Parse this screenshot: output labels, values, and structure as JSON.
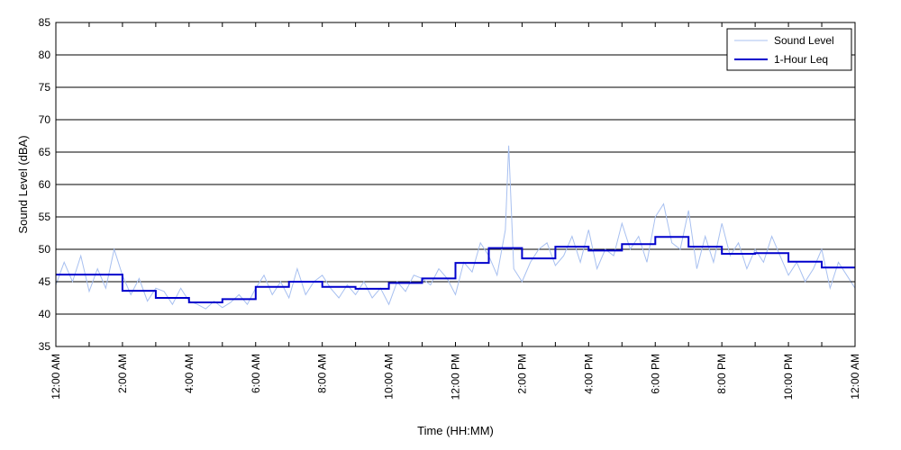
{
  "chart_data": {
    "type": "line",
    "xlabel": "Time (HH:MM)",
    "ylabel": "Sound Level (dBA)",
    "ylim": [
      35,
      85
    ],
    "y_ticks": [
      35,
      40,
      45,
      50,
      55,
      60,
      65,
      70,
      75,
      80,
      85
    ],
    "xlim_hours": [
      0,
      24
    ],
    "x_ticks": [
      {
        "hour": 0,
        "label": "12:00 AM"
      },
      {
        "hour": 2,
        "label": "2:00 AM"
      },
      {
        "hour": 4,
        "label": "4:00 AM"
      },
      {
        "hour": 6,
        "label": "6:00 AM"
      },
      {
        "hour": 8,
        "label": "8:00 AM"
      },
      {
        "hour": 10,
        "label": "10:00 AM"
      },
      {
        "hour": 12,
        "label": "12:00 PM"
      },
      {
        "hour": 14,
        "label": "2:00 PM"
      },
      {
        "hour": 16,
        "label": "4:00 PM"
      },
      {
        "hour": 18,
        "label": "6:00 PM"
      },
      {
        "hour": 20,
        "label": "8:00 PM"
      },
      {
        "hour": 22,
        "label": "10:00 PM"
      },
      {
        "hour": 24,
        "label": "12:00 AM"
      }
    ],
    "grid": "horizontal",
    "legend_position": "top-right",
    "series": [
      {
        "name": "Sound Level",
        "color": "#a8c0f0",
        "x": [
          0,
          0.25,
          0.5,
          0.75,
          1,
          1.25,
          1.5,
          1.75,
          2,
          2.25,
          2.5,
          2.75,
          3,
          3.25,
          3.5,
          3.75,
          4,
          4.25,
          4.5,
          4.75,
          5,
          5.25,
          5.5,
          5.75,
          6,
          6.25,
          6.5,
          6.75,
          7,
          7.25,
          7.5,
          7.75,
          8,
          8.25,
          8.5,
          8.75,
          9,
          9.25,
          9.5,
          9.75,
          10,
          10.25,
          10.5,
          10.75,
          11,
          11.25,
          11.5,
          11.75,
          12,
          12.25,
          12.5,
          12.75,
          13,
          13.25,
          13.5,
          13.6,
          13.75,
          14,
          14.25,
          14.5,
          14.75,
          15,
          15.25,
          15.5,
          15.75,
          16,
          16.25,
          16.5,
          16.75,
          17,
          17.25,
          17.5,
          17.75,
          18,
          18.25,
          18.5,
          18.75,
          19,
          19.25,
          19.5,
          19.75,
          20,
          20.25,
          20.5,
          20.75,
          21,
          21.25,
          21.5,
          21.75,
          22,
          22.25,
          22.5,
          22.75,
          23,
          23.25,
          23.5,
          23.75,
          24
        ],
        "values": [
          44.5,
          48,
          45,
          49,
          43.5,
          47,
          44,
          50,
          46,
          43,
          45.5,
          42,
          44,
          43.5,
          41.5,
          44,
          42,
          41.5,
          40.8,
          42,
          41,
          41.8,
          43,
          41.5,
          44,
          46,
          43,
          45,
          42.5,
          47,
          43,
          45,
          46,
          44,
          42.5,
          44.5,
          43,
          45,
          42.5,
          44,
          41.5,
          45,
          43.5,
          46,
          45.5,
          44.5,
          47,
          45.5,
          43,
          48,
          46.5,
          51,
          49,
          46,
          53,
          66,
          47,
          45,
          48,
          50,
          51,
          47.5,
          49,
          52,
          48,
          53,
          47,
          50,
          49,
          54,
          50,
          52,
          48,
          55,
          57,
          51,
          50,
          56,
          47,
          52,
          48,
          54,
          49,
          51,
          47,
          50,
          48,
          52,
          49,
          46,
          48,
          45,
          47,
          50,
          44,
          48,
          46,
          44
        ]
      },
      {
        "name": "1-Hour Leq",
        "color": "#0000cc",
        "step_edges": [
          0,
          1,
          2,
          3,
          4,
          5,
          6,
          7,
          8,
          9,
          10,
          11,
          12,
          13,
          14,
          15,
          16,
          17,
          18,
          19,
          20,
          21,
          22,
          23,
          24
        ],
        "values": [
          46.1,
          46.1,
          43.6,
          42.5,
          41.8,
          42.3,
          44.2,
          45,
          44.2,
          43.9,
          44.8,
          45.5,
          47.9,
          50.2,
          48.6,
          50.4,
          49.8,
          50.8,
          51.9,
          50.4,
          49.3,
          49.4,
          48.1,
          47.2
        ]
      }
    ]
  }
}
